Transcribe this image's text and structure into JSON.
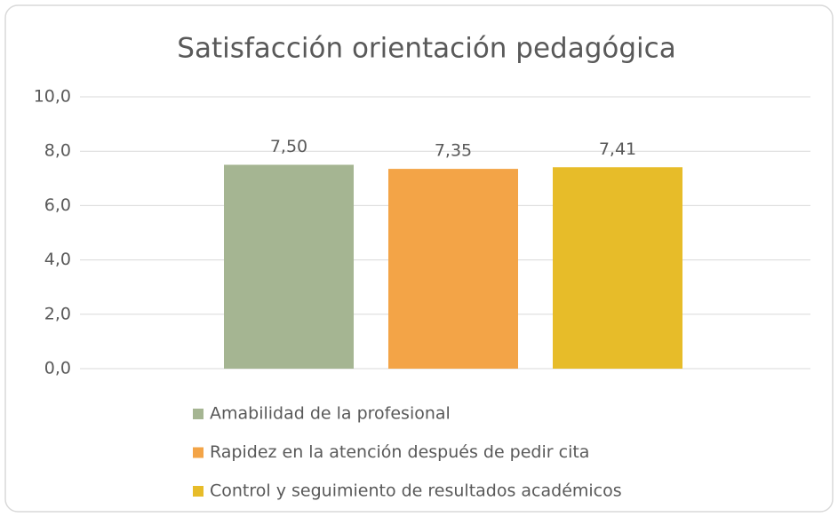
{
  "chart_data": {
    "type": "bar",
    "title": "Satisfacción orientación pedagógica",
    "categories": [
      null
    ],
    "series": [
      {
        "name": "Amabilidad de la profesional",
        "color": "#a5b592",
        "values": [
          7.5
        ],
        "value_labels": [
          "7,50"
        ]
      },
      {
        "name": "Rapidez en la atención después de pedir cita",
        "color": "#f3a447",
        "values": [
          7.35
        ],
        "value_labels": [
          "7,35"
        ]
      },
      {
        "name": "Control y seguimiento de resultados académicos",
        "color": "#e7bc29",
        "values": [
          7.41
        ],
        "value_labels": [
          "7,41"
        ]
      }
    ],
    "ylim": [
      0,
      10
    ],
    "yticks": [
      {
        "value": 0,
        "label": "0,0"
      },
      {
        "value": 2,
        "label": "2,0"
      },
      {
        "value": 4,
        "label": "4,0"
      },
      {
        "value": 6,
        "label": "6,0"
      },
      {
        "value": 8,
        "label": "8,0"
      },
      {
        "value": 10,
        "label": "10,0"
      }
    ],
    "grid": true,
    "legend": "bottom"
  }
}
